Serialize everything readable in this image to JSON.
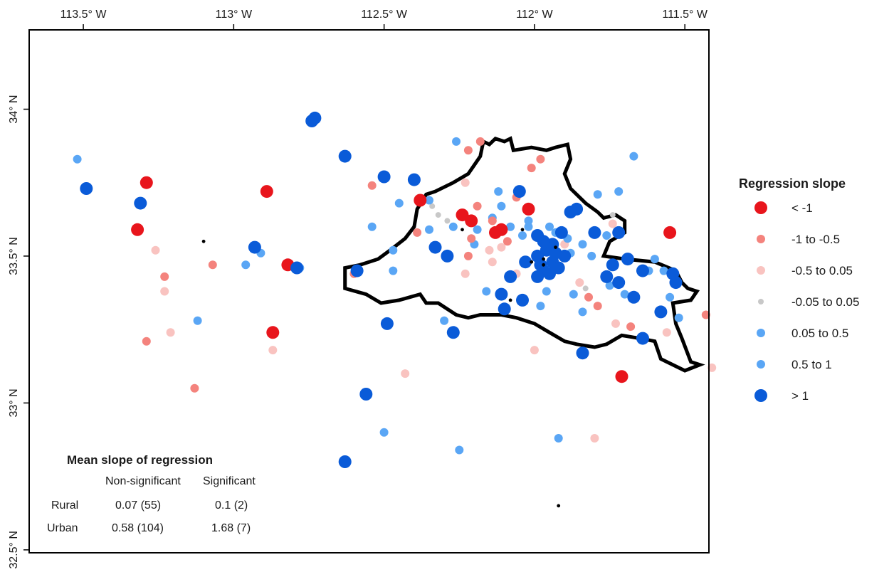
{
  "map": {
    "x_ticks": [
      {
        "lon": -113.5,
        "label": "113.5° W"
      },
      {
        "lon": -113.0,
        "label": "113° W"
      },
      {
        "lon": -112.5,
        "label": "112.5° W"
      },
      {
        "lon": -112.0,
        "label": "112° W"
      },
      {
        "lon": -111.5,
        "label": "111.5° W"
      }
    ],
    "y_ticks": [
      {
        "lat": 34.0,
        "label": "34° N"
      },
      {
        "lat": 33.5,
        "label": "33.5° N"
      },
      {
        "lat": 33.0,
        "label": "33° N"
      },
      {
        "lat": 32.5,
        "label": "32.5° N"
      }
    ],
    "lon_range": [
      -113.68,
      -111.42
    ],
    "lat_range": [
      32.49,
      34.27
    ]
  },
  "legend": {
    "title": "Regression slope",
    "classes": [
      {
        "key": "lt-1",
        "label": "< -1",
        "color": "#e8151c",
        "size": "large"
      },
      {
        "key": "m1-m05",
        "label": "-1 to -0.5",
        "color": "#f4837d",
        "size": "small"
      },
      {
        "key": "m05-005",
        "label": "-0.5 to 0.05",
        "color": "#f9c3c0",
        "size": "small"
      },
      {
        "key": "m005-005",
        "label": "-0.05 to 0.05",
        "color": "#c8c8c8",
        "size": "tiny"
      },
      {
        "key": "005-05",
        "label": "0.05  to 0.5",
        "color": "#5aa6f5",
        "size": "small"
      },
      {
        "key": "05-1",
        "label": "0.5 to 1",
        "color": "#5aa6f5",
        "size": "small"
      },
      {
        "key": "gt1",
        "label": "> 1",
        "color": "#0a5bd8",
        "size": "large"
      }
    ]
  },
  "summary_table": {
    "title": "Mean slope of regression",
    "columns": [
      "Non-significant",
      "Significant"
    ],
    "rows": [
      {
        "label": "Rural",
        "non_significant": "0.07 (55)",
        "significant": "0.1 (2)"
      },
      {
        "label": "Urban",
        "non_significant": "0.58 (104)",
        "significant": "1.68 (7)"
      }
    ]
  },
  "urban_boundary": [
    [
      -112.36,
      33.71
    ],
    [
      -112.33,
      33.72
    ],
    [
      -112.27,
      33.75
    ],
    [
      -112.22,
      33.78
    ],
    [
      -112.2,
      33.81
    ],
    [
      -112.18,
      33.84
    ],
    [
      -112.17,
      33.89
    ],
    [
      -112.15,
      33.88
    ],
    [
      -112.13,
      33.9
    ],
    [
      -112.1,
      33.89
    ],
    [
      -112.08,
      33.9
    ],
    [
      -112.07,
      33.86
    ],
    [
      -112.01,
      33.87
    ],
    [
      -111.96,
      33.86
    ],
    [
      -111.93,
      33.87
    ],
    [
      -111.89,
      33.88
    ],
    [
      -111.88,
      33.83
    ],
    [
      -111.9,
      33.78
    ],
    [
      -111.88,
      33.73
    ],
    [
      -111.83,
      33.68
    ],
    [
      -111.79,
      33.65
    ],
    [
      -111.77,
      33.63
    ],
    [
      -111.73,
      33.64
    ],
    [
      -111.7,
      33.62
    ],
    [
      -111.7,
      33.58
    ],
    [
      -111.75,
      33.55
    ],
    [
      -111.77,
      33.5
    ],
    [
      -111.7,
      33.49
    ],
    [
      -111.6,
      33.48
    ],
    [
      -111.53,
      33.45
    ],
    [
      -111.51,
      33.41
    ],
    [
      -111.49,
      33.39
    ],
    [
      -111.46,
      33.38
    ],
    [
      -111.48,
      33.35
    ],
    [
      -111.54,
      33.34
    ],
    [
      -111.53,
      33.27
    ],
    [
      -111.51,
      33.22
    ],
    [
      -111.48,
      33.14
    ],
    [
      -111.45,
      33.13
    ],
    [
      -111.5,
      33.11
    ],
    [
      -111.58,
      33.15
    ],
    [
      -111.6,
      33.21
    ],
    [
      -111.65,
      33.22
    ],
    [
      -111.71,
      33.23
    ],
    [
      -111.76,
      33.2
    ],
    [
      -111.8,
      33.19
    ],
    [
      -111.86,
      33.2
    ],
    [
      -111.9,
      33.21
    ],
    [
      -111.95,
      33.24
    ],
    [
      -112.0,
      33.27
    ],
    [
      -112.06,
      33.29
    ],
    [
      -112.11,
      33.3
    ],
    [
      -112.18,
      33.3
    ],
    [
      -112.22,
      33.29
    ],
    [
      -112.26,
      33.3
    ],
    [
      -112.32,
      33.34
    ],
    [
      -112.36,
      33.34
    ],
    [
      -112.38,
      33.37
    ],
    [
      -112.45,
      33.35
    ],
    [
      -112.51,
      33.34
    ],
    [
      -112.56,
      33.37
    ],
    [
      -112.63,
      33.39
    ],
    [
      -112.63,
      33.46
    ],
    [
      -112.58,
      33.47
    ],
    [
      -112.52,
      33.49
    ],
    [
      -112.48,
      33.52
    ],
    [
      -112.43,
      33.56
    ],
    [
      -112.4,
      33.6
    ],
    [
      -112.39,
      33.66
    ]
  ],
  "chart_data": {
    "type": "scatter",
    "x_unit": "longitude (°)",
    "y_unit": "latitude (°)",
    "points": [
      {
        "lon": -112.73,
        "lat": 33.97,
        "cls": "gt1"
      },
      {
        "lon": -112.74,
        "lat": 33.96,
        "cls": "gt1"
      },
      {
        "lon": -112.63,
        "lat": 33.84,
        "cls": "gt1"
      },
      {
        "lon": -112.5,
        "lat": 33.77,
        "cls": "gt1"
      },
      {
        "lon": -112.4,
        "lat": 33.76,
        "cls": "gt1"
      },
      {
        "lon": -113.49,
        "lat": 33.73,
        "cls": "gt1"
      },
      {
        "lon": -113.31,
        "lat": 33.68,
        "cls": "gt1"
      },
      {
        "lon": -112.93,
        "lat": 33.53,
        "cls": "gt1"
      },
      {
        "lon": -112.79,
        "lat": 33.46,
        "cls": "gt1"
      },
      {
        "lon": -112.59,
        "lat": 33.45,
        "cls": "gt1"
      },
      {
        "lon": -112.33,
        "lat": 33.53,
        "cls": "gt1"
      },
      {
        "lon": -112.29,
        "lat": 33.5,
        "cls": "gt1"
      },
      {
        "lon": -112.08,
        "lat": 33.43,
        "cls": "gt1"
      },
      {
        "lon": -112.11,
        "lat": 33.37,
        "cls": "gt1"
      },
      {
        "lon": -112.1,
        "lat": 33.32,
        "cls": "gt1"
      },
      {
        "lon": -112.04,
        "lat": 33.35,
        "cls": "gt1"
      },
      {
        "lon": -112.49,
        "lat": 33.27,
        "cls": "gt1"
      },
      {
        "lon": -112.27,
        "lat": 33.24,
        "cls": "gt1"
      },
      {
        "lon": -112.05,
        "lat": 33.72,
        "cls": "gt1"
      },
      {
        "lon": -112.03,
        "lat": 33.48,
        "cls": "gt1"
      },
      {
        "lon": -111.99,
        "lat": 33.5,
        "cls": "gt1"
      },
      {
        "lon": -111.98,
        "lat": 33.47,
        "cls": "gt1"
      },
      {
        "lon": -111.97,
        "lat": 33.45,
        "cls": "gt1"
      },
      {
        "lon": -111.99,
        "lat": 33.43,
        "cls": "gt1"
      },
      {
        "lon": -111.96,
        "lat": 33.52,
        "cls": "gt1"
      },
      {
        "lon": -111.94,
        "lat": 33.48,
        "cls": "gt1"
      },
      {
        "lon": -111.95,
        "lat": 33.44,
        "cls": "gt1"
      },
      {
        "lon": -111.93,
        "lat": 33.51,
        "cls": "gt1"
      },
      {
        "lon": -111.92,
        "lat": 33.46,
        "cls": "gt1"
      },
      {
        "lon": -111.9,
        "lat": 33.5,
        "cls": "gt1"
      },
      {
        "lon": -111.94,
        "lat": 33.54,
        "cls": "gt1"
      },
      {
        "lon": -111.97,
        "lat": 33.55,
        "cls": "gt1"
      },
      {
        "lon": -111.91,
        "lat": 33.58,
        "cls": "gt1"
      },
      {
        "lon": -111.88,
        "lat": 33.65,
        "cls": "gt1"
      },
      {
        "lon": -111.86,
        "lat": 33.66,
        "cls": "gt1"
      },
      {
        "lon": -111.8,
        "lat": 33.58,
        "cls": "gt1"
      },
      {
        "lon": -111.72,
        "lat": 33.58,
        "cls": "gt1"
      },
      {
        "lon": -111.74,
        "lat": 33.47,
        "cls": "gt1"
      },
      {
        "lon": -111.76,
        "lat": 33.43,
        "cls": "gt1"
      },
      {
        "lon": -111.72,
        "lat": 33.41,
        "cls": "gt1"
      },
      {
        "lon": -111.69,
        "lat": 33.49,
        "cls": "gt1"
      },
      {
        "lon": -111.64,
        "lat": 33.45,
        "cls": "gt1"
      },
      {
        "lon": -111.54,
        "lat": 33.44,
        "cls": "gt1"
      },
      {
        "lon": -111.53,
        "lat": 33.41,
        "cls": "gt1"
      },
      {
        "lon": -111.67,
        "lat": 33.36,
        "cls": "gt1"
      },
      {
        "lon": -111.58,
        "lat": 33.31,
        "cls": "gt1"
      },
      {
        "lon": -111.64,
        "lat": 33.22,
        "cls": "gt1"
      },
      {
        "lon": -111.84,
        "lat": 33.17,
        "cls": "gt1"
      },
      {
        "lon": -112.56,
        "lat": 33.03,
        "cls": "gt1"
      },
      {
        "lon": -112.63,
        "lat": 32.8,
        "cls": "gt1"
      },
      {
        "lon": -111.99,
        "lat": 33.57,
        "cls": "gt1"
      },
      {
        "lon": -113.29,
        "lat": 33.75,
        "cls": "lt-1"
      },
      {
        "lon": -112.89,
        "lat": 33.72,
        "cls": "lt-1"
      },
      {
        "lon": -113.32,
        "lat": 33.59,
        "cls": "lt-1"
      },
      {
        "lon": -112.82,
        "lat": 33.47,
        "cls": "lt-1"
      },
      {
        "lon": -112.87,
        "lat": 33.24,
        "cls": "lt-1"
      },
      {
        "lon": -112.38,
        "lat": 33.69,
        "cls": "lt-1"
      },
      {
        "lon": -112.24,
        "lat": 33.64,
        "cls": "lt-1"
      },
      {
        "lon": -112.21,
        "lat": 33.62,
        "cls": "lt-1"
      },
      {
        "lon": -112.13,
        "lat": 33.58,
        "cls": "lt-1"
      },
      {
        "lon": -112.11,
        "lat": 33.59,
        "cls": "lt-1"
      },
      {
        "lon": -112.02,
        "lat": 33.66,
        "cls": "lt-1"
      },
      {
        "lon": -111.55,
        "lat": 33.58,
        "cls": "lt-1"
      },
      {
        "lon": -111.71,
        "lat": 33.09,
        "cls": "lt-1"
      },
      {
        "lon": -113.07,
        "lat": 33.47,
        "cls": "m1-m05"
      },
      {
        "lon": -113.23,
        "lat": 33.43,
        "cls": "m1-m05"
      },
      {
        "lon": -113.29,
        "lat": 33.21,
        "cls": "m1-m05"
      },
      {
        "lon": -113.13,
        "lat": 33.05,
        "cls": "m1-m05"
      },
      {
        "lon": -112.6,
        "lat": 33.44,
        "cls": "m1-m05"
      },
      {
        "lon": -112.54,
        "lat": 33.74,
        "cls": "m1-m05"
      },
      {
        "lon": -112.22,
        "lat": 33.86,
        "cls": "m1-m05"
      },
      {
        "lon": -112.18,
        "lat": 33.89,
        "cls": "m1-m05"
      },
      {
        "lon": -112.19,
        "lat": 33.67,
        "cls": "m1-m05"
      },
      {
        "lon": -112.21,
        "lat": 33.56,
        "cls": "m1-m05"
      },
      {
        "lon": -112.22,
        "lat": 33.5,
        "cls": "m1-m05"
      },
      {
        "lon": -112.14,
        "lat": 33.62,
        "cls": "m1-m05"
      },
      {
        "lon": -112.09,
        "lat": 33.55,
        "cls": "m1-m05"
      },
      {
        "lon": -112.06,
        "lat": 33.7,
        "cls": "m1-m05"
      },
      {
        "lon": -111.98,
        "lat": 33.83,
        "cls": "m1-m05"
      },
      {
        "lon": -112.01,
        "lat": 33.8,
        "cls": "m1-m05"
      },
      {
        "lon": -111.82,
        "lat": 33.36,
        "cls": "m1-m05"
      },
      {
        "lon": -111.79,
        "lat": 33.33,
        "cls": "m1-m05"
      },
      {
        "lon": -111.68,
        "lat": 33.26,
        "cls": "m1-m05"
      },
      {
        "lon": -111.43,
        "lat": 33.3,
        "cls": "m1-m05"
      },
      {
        "lon": -112.39,
        "lat": 33.58,
        "cls": "m1-m05"
      },
      {
        "lon": -113.26,
        "lat": 33.52,
        "cls": "m05-005"
      },
      {
        "lon": -113.23,
        "lat": 33.38,
        "cls": "m05-005"
      },
      {
        "lon": -113.21,
        "lat": 33.24,
        "cls": "m05-005"
      },
      {
        "lon": -112.87,
        "lat": 33.18,
        "cls": "m05-005"
      },
      {
        "lon": -112.43,
        "lat": 33.1,
        "cls": "m05-005"
      },
      {
        "lon": -112.23,
        "lat": 33.75,
        "cls": "m05-005"
      },
      {
        "lon": -112.23,
        "lat": 33.44,
        "cls": "m05-005"
      },
      {
        "lon": -112.15,
        "lat": 33.52,
        "cls": "m05-005"
      },
      {
        "lon": -112.14,
        "lat": 33.48,
        "cls": "m05-005"
      },
      {
        "lon": -112.11,
        "lat": 33.53,
        "cls": "m05-005"
      },
      {
        "lon": -112.06,
        "lat": 33.44,
        "cls": "m05-005"
      },
      {
        "lon": -112.0,
        "lat": 33.18,
        "cls": "m05-005"
      },
      {
        "lon": -111.9,
        "lat": 33.54,
        "cls": "m05-005"
      },
      {
        "lon": -111.85,
        "lat": 33.41,
        "cls": "m05-005"
      },
      {
        "lon": -111.73,
        "lat": 33.27,
        "cls": "m05-005"
      },
      {
        "lon": -111.8,
        "lat": 32.88,
        "cls": "m05-005"
      },
      {
        "lon": -111.41,
        "lat": 33.12,
        "cls": "m05-005"
      },
      {
        "lon": -111.56,
        "lat": 33.24,
        "cls": "m05-005"
      },
      {
        "lon": -111.74,
        "lat": 33.61,
        "cls": "m05-005"
      },
      {
        "lon": -112.34,
        "lat": 33.67,
        "cls": "m005-005"
      },
      {
        "lon": -112.32,
        "lat": 33.64,
        "cls": "m005-005"
      },
      {
        "lon": -112.29,
        "lat": 33.62,
        "cls": "m005-005"
      },
      {
        "lon": -111.74,
        "lat": 33.64,
        "cls": "m005-005"
      },
      {
        "lon": -111.83,
        "lat": 33.39,
        "cls": "m005-005"
      },
      {
        "lon": -113.52,
        "lat": 33.83,
        "cls": "005-05"
      },
      {
        "lon": -113.12,
        "lat": 33.28,
        "cls": "005-05"
      },
      {
        "lon": -112.96,
        "lat": 33.47,
        "cls": "005-05"
      },
      {
        "lon": -112.91,
        "lat": 33.51,
        "cls": "005-05"
      },
      {
        "lon": -112.78,
        "lat": 33.46,
        "cls": "005-05"
      },
      {
        "lon": -112.54,
        "lat": 33.6,
        "cls": "005-05"
      },
      {
        "lon": -112.47,
        "lat": 33.52,
        "cls": "005-05"
      },
      {
        "lon": -112.47,
        "lat": 33.45,
        "cls": "005-05"
      },
      {
        "lon": -112.45,
        "lat": 33.68,
        "cls": "005-05"
      },
      {
        "lon": -112.35,
        "lat": 33.69,
        "cls": "005-05"
      },
      {
        "lon": -112.35,
        "lat": 33.59,
        "cls": "005-05"
      },
      {
        "lon": -112.26,
        "lat": 33.89,
        "cls": "005-05"
      },
      {
        "lon": -112.3,
        "lat": 33.28,
        "cls": "005-05"
      },
      {
        "lon": -112.16,
        "lat": 33.38,
        "cls": "005-05"
      },
      {
        "lon": -112.12,
        "lat": 33.72,
        "cls": "005-05"
      },
      {
        "lon": -112.11,
        "lat": 33.67,
        "cls": "005-05"
      },
      {
        "lon": -112.02,
        "lat": 33.6,
        "cls": "005-05"
      },
      {
        "lon": -112.04,
        "lat": 33.57,
        "cls": "005-05"
      },
      {
        "lon": -111.98,
        "lat": 33.33,
        "cls": "005-05"
      },
      {
        "lon": -111.96,
        "lat": 33.38,
        "cls": "005-05"
      },
      {
        "lon": -111.87,
        "lat": 33.37,
        "cls": "005-05"
      },
      {
        "lon": -111.84,
        "lat": 33.31,
        "cls": "005-05"
      },
      {
        "lon": -111.81,
        "lat": 33.5,
        "cls": "005-05"
      },
      {
        "lon": -111.75,
        "lat": 33.4,
        "cls": "005-05"
      },
      {
        "lon": -111.7,
        "lat": 33.37,
        "cls": "005-05"
      },
      {
        "lon": -111.62,
        "lat": 33.45,
        "cls": "005-05"
      },
      {
        "lon": -111.55,
        "lat": 33.36,
        "cls": "005-05"
      },
      {
        "lon": -111.52,
        "lat": 33.29,
        "cls": "005-05"
      },
      {
        "lon": -111.67,
        "lat": 33.84,
        "cls": "005-05"
      },
      {
        "lon": -111.92,
        "lat": 32.88,
        "cls": "005-05"
      },
      {
        "lon": -112.25,
        "lat": 32.84,
        "cls": "005-05"
      },
      {
        "lon": -112.5,
        "lat": 32.9,
        "cls": "005-05"
      },
      {
        "lon": -111.72,
        "lat": 33.72,
        "cls": "005-05"
      },
      {
        "lon": -112.27,
        "lat": 33.6,
        "cls": "05-1"
      },
      {
        "lon": -112.19,
        "lat": 33.59,
        "cls": "05-1"
      },
      {
        "lon": -112.14,
        "lat": 33.63,
        "cls": "05-1"
      },
      {
        "lon": -112.08,
        "lat": 33.6,
        "cls": "05-1"
      },
      {
        "lon": -111.95,
        "lat": 33.6,
        "cls": "05-1"
      },
      {
        "lon": -111.89,
        "lat": 33.56,
        "cls": "05-1"
      },
      {
        "lon": -111.84,
        "lat": 33.54,
        "cls": "05-1"
      },
      {
        "lon": -111.79,
        "lat": 33.71,
        "cls": "05-1"
      },
      {
        "lon": -111.76,
        "lat": 33.57,
        "cls": "05-1"
      },
      {
        "lon": -111.6,
        "lat": 33.49,
        "cls": "05-1"
      },
      {
        "lon": -111.57,
        "lat": 33.45,
        "cls": "05-1"
      },
      {
        "lon": -112.2,
        "lat": 33.54,
        "cls": "05-1"
      },
      {
        "lon": -112.02,
        "lat": 33.62,
        "cls": "05-1"
      },
      {
        "lon": -111.93,
        "lat": 33.58,
        "cls": "05-1"
      },
      {
        "lon": -111.88,
        "lat": 33.51,
        "cls": "05-1"
      }
    ],
    "significant_markers": [
      {
        "lon": -113.1,
        "lat": 33.55
      },
      {
        "lon": -112.24,
        "lat": 33.59
      },
      {
        "lon": -112.04,
        "lat": 33.59
      },
      {
        "lon": -112.08,
        "lat": 33.35
      },
      {
        "lon": -111.92,
        "lat": 32.65
      },
      {
        "lon": -111.97,
        "lat": 33.49
      },
      {
        "lon": -111.93,
        "lat": 33.53
      },
      {
        "lon": -112.01,
        "lat": 33.48
      },
      {
        "lon": -111.97,
        "lat": 33.47
      }
    ]
  }
}
